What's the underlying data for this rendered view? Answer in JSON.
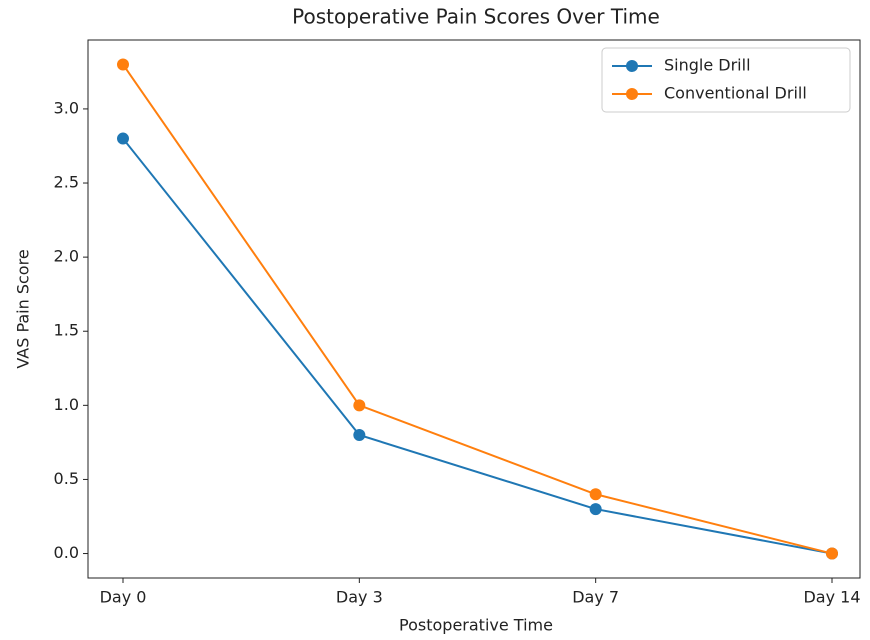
{
  "chart_data": {
    "type": "line",
    "title": "Postoperative Pain Scores Over Time",
    "x_label": "Postoperative Time",
    "y_label": "VAS Pain Score",
    "categories": [
      "Day 0",
      "Day 3",
      "Day 7",
      "Day 14"
    ],
    "series": [
      {
        "name": "Single Drill",
        "color": "#1f77b4",
        "values": [
          2.8,
          0.8,
          0.3,
          0.0
        ]
      },
      {
        "name": "Conventional Drill",
        "color": "#ff7f0e",
        "values": [
          3.3,
          1.0,
          0.4,
          0.0
        ]
      }
    ],
    "ylim": [
      -0.165,
      3.465
    ],
    "yticks": [
      {
        "value": 0,
        "label": "0.0"
      },
      0.5,
      {
        "value": 1,
        "label": "1.0"
      },
      1.5,
      {
        "value": 2,
        "label": "2.0"
      },
      2.5,
      {
        "value": 3,
        "label": "3.0"
      }
    ],
    "legend": "upper right",
    "grid": false
  }
}
